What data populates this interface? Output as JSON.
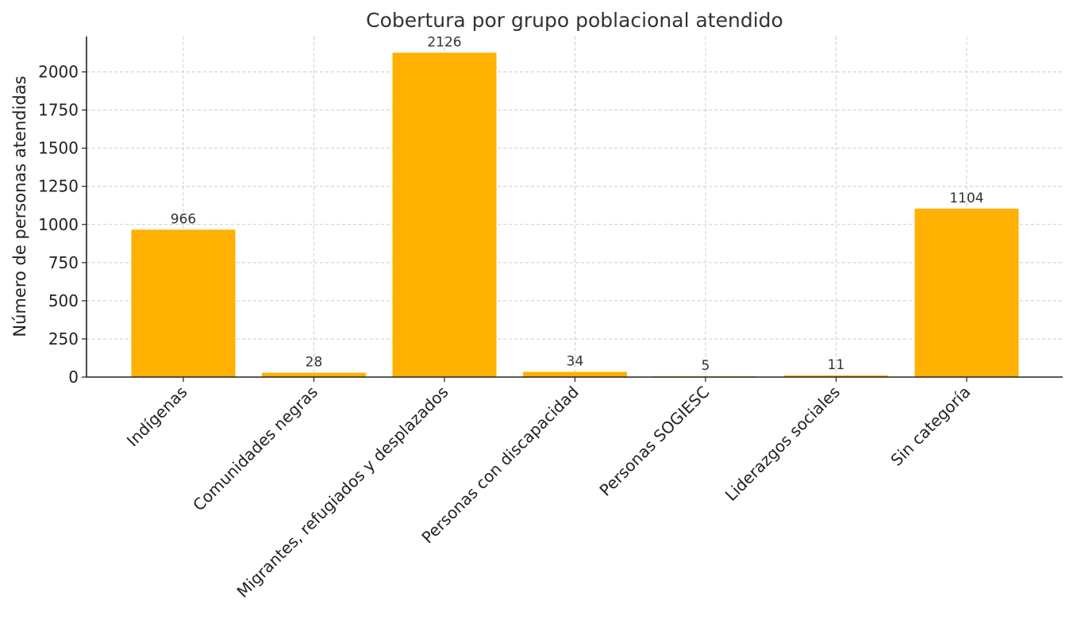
{
  "chart_data": {
    "type": "bar",
    "title": "Cobertura por grupo poblacional atendido",
    "xlabel": "",
    "ylabel": "Número de personas atendidas",
    "categories": [
      "Indígenas",
      "Comunidades negras",
      "Migrantes, refugiados y desplazados",
      "Personas con discapacidad",
      "Personas SOGIESC",
      "Liderazgos sociales",
      "Sin categoría"
    ],
    "values": [
      966,
      28,
      2126,
      34,
      5,
      11,
      1104
    ],
    "data_labels": [
      "966",
      "28",
      "2126",
      "34",
      "5",
      "11",
      "1104"
    ],
    "ylim": [
      0,
      2232
    ],
    "yticks": [
      0,
      250,
      500,
      750,
      1000,
      1250,
      1500,
      1750,
      2000
    ],
    "ytick_labels": [
      "0",
      "250",
      "500",
      "750",
      "1000",
      "1250",
      "1500",
      "1750",
      "2000"
    ],
    "grid": true,
    "legend": "none",
    "colors": {
      "bar": "#FFB000",
      "grid": "#cccccc",
      "axis": "#222222",
      "text": "#333333"
    }
  }
}
